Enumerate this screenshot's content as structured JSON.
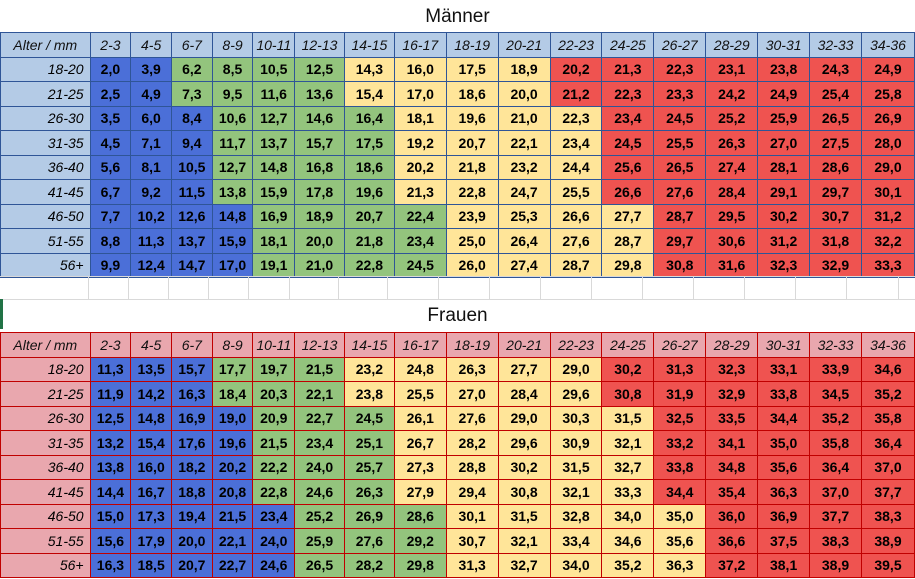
{
  "columns": [
    "2-3",
    "4-5",
    "6-7",
    "8-9",
    "10-11",
    "12-13",
    "14-15",
    "16-17",
    "18-19",
    "20-21",
    "22-23",
    "24-25",
    "26-27",
    "28-29",
    "30-31",
    "32-33",
    "34-36"
  ],
  "colors": {
    "blue": "#4b6fd8",
    "green": "#93c47d",
    "yellow": "#ffe599",
    "red": "#ef5350"
  },
  "tables": [
    {
      "title": "Männer",
      "header_label": "Alter / mm",
      "color_bands": [
        [
          "blue",
          "blue",
          "green",
          "green",
          "green",
          "green",
          "yellow",
          "yellow",
          "yellow",
          "yellow",
          "red",
          "red",
          "red",
          "red",
          "red",
          "red",
          "red"
        ],
        [
          "blue",
          "blue",
          "green",
          "green",
          "green",
          "green",
          "yellow",
          "yellow",
          "yellow",
          "yellow",
          "red",
          "red",
          "red",
          "red",
          "red",
          "red",
          "red"
        ],
        [
          "blue",
          "blue",
          "blue",
          "green",
          "green",
          "green",
          "green",
          "yellow",
          "yellow",
          "yellow",
          "yellow",
          "red",
          "red",
          "red",
          "red",
          "red",
          "red"
        ],
        [
          "blue",
          "blue",
          "blue",
          "green",
          "green",
          "green",
          "green",
          "yellow",
          "yellow",
          "yellow",
          "yellow",
          "red",
          "red",
          "red",
          "red",
          "red",
          "red"
        ],
        [
          "blue",
          "blue",
          "blue",
          "green",
          "green",
          "green",
          "green",
          "yellow",
          "yellow",
          "yellow",
          "yellow",
          "red",
          "red",
          "red",
          "red",
          "red",
          "red"
        ],
        [
          "blue",
          "blue",
          "blue",
          "green",
          "green",
          "green",
          "green",
          "yellow",
          "yellow",
          "yellow",
          "yellow",
          "red",
          "red",
          "red",
          "red",
          "red",
          "red"
        ],
        [
          "blue",
          "blue",
          "blue",
          "blue",
          "green",
          "green",
          "green",
          "green",
          "yellow",
          "yellow",
          "yellow",
          "yellow",
          "red",
          "red",
          "red",
          "red",
          "red"
        ],
        [
          "blue",
          "blue",
          "blue",
          "blue",
          "green",
          "green",
          "green",
          "green",
          "yellow",
          "yellow",
          "yellow",
          "yellow",
          "red",
          "red",
          "red",
          "red",
          "red"
        ],
        [
          "blue",
          "blue",
          "blue",
          "blue",
          "green",
          "green",
          "green",
          "green",
          "yellow",
          "yellow",
          "yellow",
          "yellow",
          "red",
          "red",
          "red",
          "red",
          "red"
        ]
      ],
      "rows": [
        {
          "age": "18-20",
          "values": [
            "2,0",
            "3,9",
            "6,2",
            "8,5",
            "10,5",
            "12,5",
            "14,3",
            "16,0",
            "17,5",
            "18,9",
            "20,2",
            "21,3",
            "22,3",
            "23,1",
            "23,8",
            "24,3",
            "24,9"
          ]
        },
        {
          "age": "21-25",
          "values": [
            "2,5",
            "4,9",
            "7,3",
            "9,5",
            "11,6",
            "13,6",
            "15,4",
            "17,0",
            "18,6",
            "20,0",
            "21,2",
            "22,3",
            "23,3",
            "24,2",
            "24,9",
            "25,4",
            "25,8"
          ]
        },
        {
          "age": "26-30",
          "values": [
            "3,5",
            "6,0",
            "8,4",
            "10,6",
            "12,7",
            "14,6",
            "16,4",
            "18,1",
            "19,6",
            "21,0",
            "22,3",
            "23,4",
            "24,5",
            "25,2",
            "25,9",
            "26,5",
            "26,9"
          ]
        },
        {
          "age": "31-35",
          "values": [
            "4,5",
            "7,1",
            "9,4",
            "11,7",
            "13,7",
            "15,7",
            "17,5",
            "19,2",
            "20,7",
            "22,1",
            "23,4",
            "24,5",
            "25,5",
            "26,3",
            "27,0",
            "27,5",
            "28,0"
          ]
        },
        {
          "age": "36-40",
          "values": [
            "5,6",
            "8,1",
            "10,5",
            "12,7",
            "14,8",
            "16,8",
            "18,6",
            "20,2",
            "21,8",
            "23,2",
            "24,4",
            "25,6",
            "26,5",
            "27,4",
            "28,1",
            "28,6",
            "29,0"
          ]
        },
        {
          "age": "41-45",
          "values": [
            "6,7",
            "9,2",
            "11,5",
            "13,8",
            "15,9",
            "17,8",
            "19,6",
            "21,3",
            "22,8",
            "24,7",
            "25,5",
            "26,6",
            "27,6",
            "28,4",
            "29,1",
            "29,7",
            "30,1"
          ]
        },
        {
          "age": "46-50",
          "values": [
            "7,7",
            "10,2",
            "12,6",
            "14,8",
            "16,9",
            "18,9",
            "20,7",
            "22,4",
            "23,9",
            "25,3",
            "26,6",
            "27,7",
            "28,7",
            "29,5",
            "30,2",
            "30,7",
            "31,2"
          ]
        },
        {
          "age": "51-55",
          "values": [
            "8,8",
            "11,3",
            "13,7",
            "15,9",
            "18,1",
            "20,0",
            "21,8",
            "23,4",
            "25,0",
            "26,4",
            "27,6",
            "28,7",
            "29,7",
            "30,6",
            "31,2",
            "31,8",
            "32,2"
          ]
        },
        {
          "age": "56+",
          "values": [
            "9,9",
            "12,4",
            "14,7",
            "17,0",
            "19,1",
            "21,0",
            "22,8",
            "24,5",
            "26,0",
            "27,4",
            "28,7",
            "29,8",
            "30,8",
            "31,6",
            "32,3",
            "32,9",
            "33,3"
          ]
        }
      ]
    },
    {
      "title": "Frauen",
      "header_label": "Alter / mm",
      "color_bands": [
        [
          "blue",
          "blue",
          "blue",
          "green",
          "green",
          "green",
          "yellow",
          "yellow",
          "yellow",
          "yellow",
          "yellow",
          "red",
          "red",
          "red",
          "red",
          "red",
          "red"
        ],
        [
          "blue",
          "blue",
          "blue",
          "green",
          "green",
          "green",
          "yellow",
          "yellow",
          "yellow",
          "yellow",
          "yellow",
          "red",
          "red",
          "red",
          "red",
          "red",
          "red"
        ],
        [
          "blue",
          "blue",
          "blue",
          "blue",
          "green",
          "green",
          "green",
          "yellow",
          "yellow",
          "yellow",
          "yellow",
          "yellow",
          "red",
          "red",
          "red",
          "red",
          "red"
        ],
        [
          "blue",
          "blue",
          "blue",
          "blue",
          "green",
          "green",
          "green",
          "yellow",
          "yellow",
          "yellow",
          "yellow",
          "yellow",
          "red",
          "red",
          "red",
          "red",
          "red"
        ],
        [
          "blue",
          "blue",
          "blue",
          "blue",
          "green",
          "green",
          "green",
          "yellow",
          "yellow",
          "yellow",
          "yellow",
          "yellow",
          "red",
          "red",
          "red",
          "red",
          "red"
        ],
        [
          "blue",
          "blue",
          "blue",
          "blue",
          "green",
          "green",
          "green",
          "yellow",
          "yellow",
          "yellow",
          "yellow",
          "yellow",
          "red",
          "red",
          "red",
          "red",
          "red"
        ],
        [
          "blue",
          "blue",
          "blue",
          "blue",
          "blue",
          "green",
          "green",
          "green",
          "yellow",
          "yellow",
          "yellow",
          "yellow",
          "yellow",
          "red",
          "red",
          "red",
          "red"
        ],
        [
          "blue",
          "blue",
          "blue",
          "blue",
          "blue",
          "green",
          "green",
          "green",
          "yellow",
          "yellow",
          "yellow",
          "yellow",
          "yellow",
          "red",
          "red",
          "red",
          "red"
        ],
        [
          "blue",
          "blue",
          "blue",
          "blue",
          "blue",
          "green",
          "green",
          "green",
          "yellow",
          "yellow",
          "yellow",
          "yellow",
          "yellow",
          "red",
          "red",
          "red",
          "red"
        ]
      ],
      "rows": [
        {
          "age": "18-20",
          "values": [
            "11,3",
            "13,5",
            "15,7",
            "17,7",
            "19,7",
            "21,5",
            "23,2",
            "24,8",
            "26,3",
            "27,7",
            "29,0",
            "30,2",
            "31,3",
            "32,3",
            "33,1",
            "33,9",
            "34,6"
          ]
        },
        {
          "age": "21-25",
          "values": [
            "11,9",
            "14,2",
            "16,3",
            "18,4",
            "20,3",
            "22,1",
            "23,8",
            "25,5",
            "27,0",
            "28,4",
            "29,6",
            "30,8",
            "31,9",
            "32,9",
            "33,8",
            "34,5",
            "35,2"
          ]
        },
        {
          "age": "26-30",
          "values": [
            "12,5",
            "14,8",
            "16,9",
            "19,0",
            "20,9",
            "22,7",
            "24,5",
            "26,1",
            "27,6",
            "29,0",
            "30,3",
            "31,5",
            "32,5",
            "33,5",
            "34,4",
            "35,2",
            "35,8"
          ]
        },
        {
          "age": "31-35",
          "values": [
            "13,2",
            "15,4",
            "17,6",
            "19,6",
            "21,5",
            "23,4",
            "25,1",
            "26,7",
            "28,2",
            "29,6",
            "30,9",
            "32,1",
            "33,2",
            "34,1",
            "35,0",
            "35,8",
            "36,4"
          ]
        },
        {
          "age": "36-40",
          "values": [
            "13,8",
            "16,0",
            "18,2",
            "20,2",
            "22,2",
            "24,0",
            "25,7",
            "27,3",
            "28,8",
            "30,2",
            "31,5",
            "32,7",
            "33,8",
            "34,8",
            "35,6",
            "36,4",
            "37,0"
          ]
        },
        {
          "age": "41-45",
          "values": [
            "14,4",
            "16,7",
            "18,8",
            "20,8",
            "22,8",
            "24,6",
            "26,3",
            "27,9",
            "29,4",
            "30,8",
            "32,1",
            "33,3",
            "34,4",
            "35,4",
            "36,3",
            "37,0",
            "37,7"
          ]
        },
        {
          "age": "46-50",
          "values": [
            "15,0",
            "17,3",
            "19,4",
            "21,5",
            "23,4",
            "25,2",
            "26,9",
            "28,6",
            "30,1",
            "31,5",
            "32,8",
            "34,0",
            "35,0",
            "36,0",
            "36,9",
            "37,7",
            "38,3"
          ]
        },
        {
          "age": "51-55",
          "values": [
            "15,6",
            "17,9",
            "20,0",
            "22,1",
            "24,0",
            "25,9",
            "27,6",
            "29,2",
            "30,7",
            "32,1",
            "33,4",
            "34,6",
            "35,6",
            "36,6",
            "37,5",
            "38,3",
            "38,9"
          ]
        },
        {
          "age": "56+",
          "values": [
            "16,3",
            "18,5",
            "20,7",
            "22,7",
            "24,6",
            "26,5",
            "28,2",
            "29,8",
            "31,3",
            "32,7",
            "34,0",
            "35,2",
            "36,3",
            "37,2",
            "38,1",
            "38,9",
            "39,5"
          ]
        }
      ]
    }
  ]
}
